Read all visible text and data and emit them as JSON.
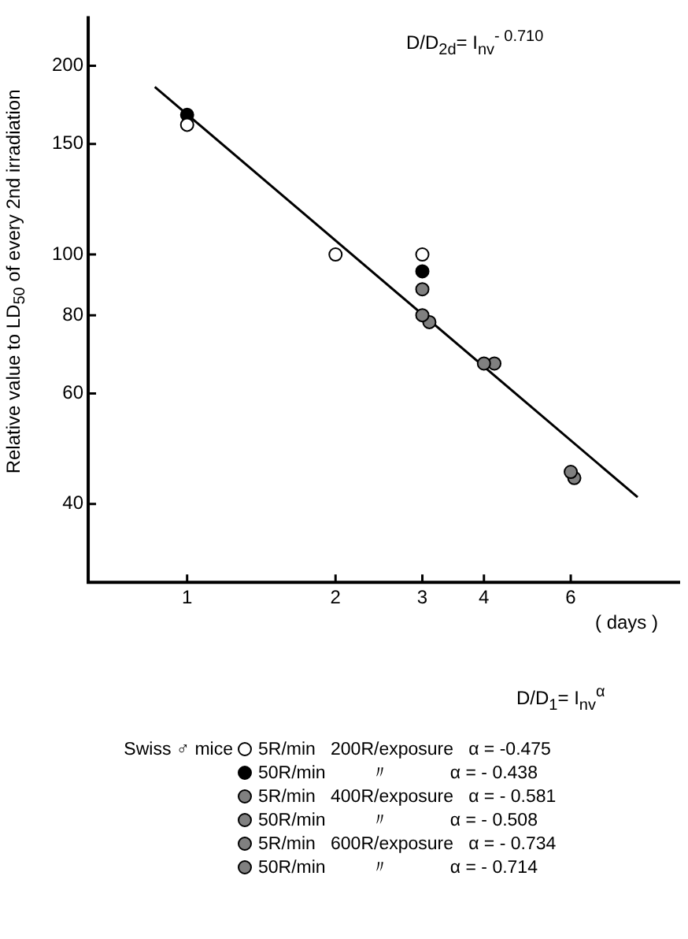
{
  "chart_data": {
    "type": "scatter",
    "xlabel": "( days )",
    "ylabel": "Relative value to LD$_{50}$ of every 2nd irradiation",
    "log": "xy",
    "xlim": [
      0.63,
      10
    ],
    "xticks": [
      1,
      2,
      3,
      4,
      6
    ],
    "ylim": [
      30,
      240
    ],
    "yticks": [
      40,
      60,
      80,
      100,
      150,
      200
    ],
    "grid": false,
    "marker": "circle",
    "legend": "bottom",
    "legend_title": "Swiss ♂ mice",
    "annotations": [
      "D/D$_{2d}$= I$_{nv}$$^{- 0.710}$",
      "D/D$_{1}$= I$_{nv}$$^{α}$"
    ],
    "series": [
      {
        "name": "5R/min   200R/exposure   α = -0.475",
        "color": "#ffffff",
        "x": [
          1,
          3
        ],
        "values": [
          161,
          100
        ]
      },
      {
        "name": "50R/min         〃            α = - 0.438",
        "color": "#000000",
        "x": [
          1,
          3
        ],
        "values": [
          167,
          94
        ]
      },
      {
        "name": "5R/min   400R/exposure   α = - 0.581",
        "color": "#808080",
        "x": [
          3,
          4
        ],
        "values": [
          88,
          67
        ]
      },
      {
        "name": "50R/min         〃            α = - 0.508",
        "color": "#808080",
        "x": [
          4.2
        ],
        "values": [
          67
        ]
      },
      {
        "name": "5R/min   600R/exposure   α = - 0.734",
        "color": "#808080",
        "x": [
          3,
          6
        ],
        "values": [
          80,
          45
        ]
      },
      {
        "name": "50R/min         〃            α = - 0.714",
        "color": "#808080",
        "x": [
          3.1,
          6.1
        ],
        "values": [
          78,
          44
        ]
      },
      {
        "color": "#ffffff",
        "x": [
          2
        ],
        "values": [
          100
        ]
      },
      {
        "type": "line",
        "marker": "none",
        "color": "#000000",
        "x": [
          0.86,
          8.2
        ],
        "values": [
          185,
          41
        ]
      }
    ]
  }
}
